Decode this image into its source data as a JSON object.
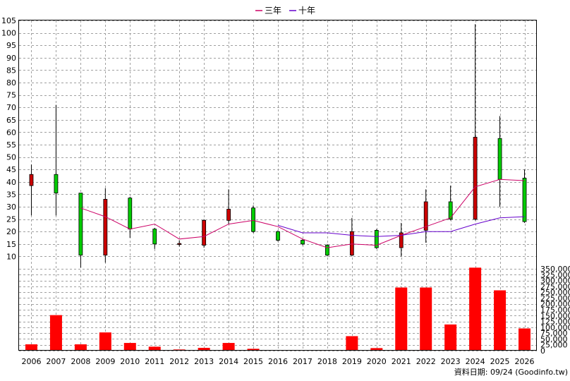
{
  "chart_data": [
    {
      "type": "candlestick",
      "legend": [
        {
          "name": "三年",
          "color": "#cc0066"
        },
        {
          "name": "十年",
          "color": "#6600cc"
        }
      ],
      "x": [
        "2006",
        "2007",
        "2008",
        "2009",
        "2010",
        "2011",
        "2012",
        "2013",
        "2014",
        "2015",
        "2016",
        "2017",
        "2018",
        "2019",
        "2020",
        "2021",
        "2022",
        "2023",
        "2024",
        "2025",
        "2026"
      ],
      "ylim": [
        5,
        105
      ],
      "yticks": [
        10,
        15,
        20,
        25,
        30,
        35,
        40,
        45,
        50,
        55,
        60,
        65,
        70,
        75,
        80,
        85,
        90,
        95,
        100,
        105
      ],
      "candles": [
        {
          "open": 38.5,
          "high": 47,
          "low": 26.5,
          "close": 43
        },
        {
          "open": 43,
          "high": 71,
          "low": 26.5,
          "close": 35.5
        },
        {
          "open": 35.5,
          "high": 35.5,
          "low": 5.5,
          "close": 10.5
        },
        {
          "open": 10.5,
          "high": 37.5,
          "low": 7.5,
          "close": 33
        },
        {
          "open": 33.5,
          "high": 34,
          "low": 17.5,
          "close": 21
        },
        {
          "open": 21,
          "high": 21.5,
          "low": 13,
          "close": 15
        },
        {
          "open": 14.8,
          "high": 16.5,
          "low": 14,
          "close": 15.2
        },
        {
          "open": 14.5,
          "high": 25,
          "low": 13.5,
          "close": 24.5
        },
        {
          "open": 24.5,
          "high": 37,
          "low": 23,
          "close": 29
        },
        {
          "open": 29.5,
          "high": 30.5,
          "low": 19.5,
          "close": 20
        },
        {
          "open": 20,
          "high": 20.5,
          "low": 16,
          "close": 16.5
        },
        {
          "open": 16.5,
          "high": 17,
          "low": 14.5,
          "close": 15
        },
        {
          "open": 14.5,
          "high": 15,
          "low": 10,
          "close": 10.5
        },
        {
          "open": 10.5,
          "high": 25.5,
          "low": 10,
          "close": 20
        },
        {
          "open": 20.5,
          "high": 21,
          "low": 13,
          "close": 13.5
        },
        {
          "open": 13.5,
          "high": 23.5,
          "low": 10,
          "close": 19.5
        },
        {
          "open": 20.5,
          "high": 37,
          "low": 15.5,
          "close": 32
        },
        {
          "open": 32,
          "high": 38.5,
          "low": 24.5,
          "close": 25
        },
        {
          "open": 25,
          "high": 103.5,
          "low": 24.5,
          "close": 58
        },
        {
          "open": 57.5,
          "high": 66.5,
          "low": 30,
          "close": 41
        },
        {
          "open": 41.5,
          "high": 45,
          "low": 23.5,
          "close": 24
        }
      ],
      "series": [
        {
          "name": "三年",
          "values": [
            null,
            null,
            29.5,
            26,
            21,
            23,
            17,
            18,
            23,
            24.5,
            22,
            17,
            13.5,
            15,
            14.5,
            18.5,
            22,
            25.5,
            38,
            41,
            40.5
          ]
        },
        {
          "name": "十年",
          "values": [
            null,
            null,
            null,
            null,
            null,
            null,
            null,
            null,
            null,
            null,
            22.5,
            19.5,
            19.5,
            18.5,
            18,
            18.5,
            20,
            20,
            23,
            25.5,
            26
          ]
        }
      ]
    },
    {
      "type": "bar",
      "x": [
        "2006",
        "2007",
        "2008",
        "2009",
        "2010",
        "2011",
        "2012",
        "2013",
        "2014",
        "2015",
        "2016",
        "2017",
        "2018",
        "2019",
        "2020",
        "2021",
        "2022",
        "2023",
        "2024",
        "2025",
        "2026"
      ],
      "values": [
        27000,
        152000,
        27000,
        78000,
        33000,
        17000,
        5000,
        12000,
        33000,
        8000,
        1000,
        1000,
        1000,
        62000,
        11000,
        270000,
        270000,
        112000,
        355000,
        258000,
        95000
      ],
      "ylim": [
        0,
        350000
      ],
      "yticks": [
        "0",
        "25,000",
        "50,000",
        "75,000",
        "100,000",
        "125,000",
        "150,000",
        "175,000",
        "200,000",
        "225,000",
        "250,000",
        "275,000",
        "300,000",
        "325,000",
        "350,000"
      ],
      "color": "#ff0000"
    }
  ],
  "footer": "資料日期: 09/24 (Goodinfo.tw)"
}
